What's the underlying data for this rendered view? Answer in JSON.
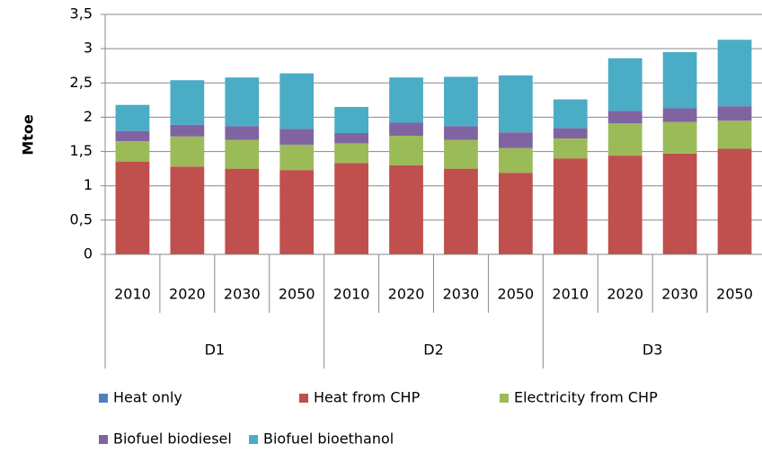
{
  "chart_data": {
    "type": "stacked-bar",
    "y_label": "Mtoe",
    "categories": [
      "2010",
      "2020",
      "2030",
      "2050",
      "2010",
      "2020",
      "2030",
      "2050",
      "2010",
      "2020",
      "2030",
      "2050"
    ],
    "groups": [
      "D1",
      "D2",
      "D3"
    ],
    "series": [
      {
        "name": "Heat only",
        "color": "#4f81bd",
        "values": [
          0,
          0,
          0,
          0,
          0,
          0,
          0,
          0,
          0,
          0,
          0,
          0
        ]
      },
      {
        "name": "Heat from CHP",
        "color": "#c0504d",
        "values": [
          1.35,
          1.28,
          1.25,
          1.23,
          1.33,
          1.3,
          1.25,
          1.19,
          1.4,
          1.44,
          1.47,
          1.54
        ]
      },
      {
        "name": "Electricity from CHP",
        "color": "#9bbb59",
        "values": [
          0.3,
          0.44,
          0.42,
          0.37,
          0.29,
          0.43,
          0.42,
          0.36,
          0.29,
          0.47,
          0.46,
          0.41
        ]
      },
      {
        "name": "Biofuel biodiesel",
        "color": "#8064a2",
        "values": [
          0.15,
          0.17,
          0.2,
          0.23,
          0.15,
          0.19,
          0.2,
          0.23,
          0.15,
          0.18,
          0.2,
          0.21
        ]
      },
      {
        "name": "Biofuel bioethanol",
        "color": "#4bacc6",
        "values": [
          0.38,
          0.65,
          0.71,
          0.81,
          0.38,
          0.66,
          0.72,
          0.83,
          0.42,
          0.77,
          0.82,
          0.97
        ]
      }
    ],
    "ylim": [
      0,
      3.5
    ],
    "yticks": [
      0,
      {
        "value": 0.5,
        "label": "0,5"
      },
      1,
      {
        "value": 1.5,
        "label": "1,5"
      },
      2,
      {
        "value": 2.5,
        "label": "2,5"
      },
      3,
      {
        "value": 3.5,
        "label": "3,5"
      }
    ],
    "grid": true
  }
}
